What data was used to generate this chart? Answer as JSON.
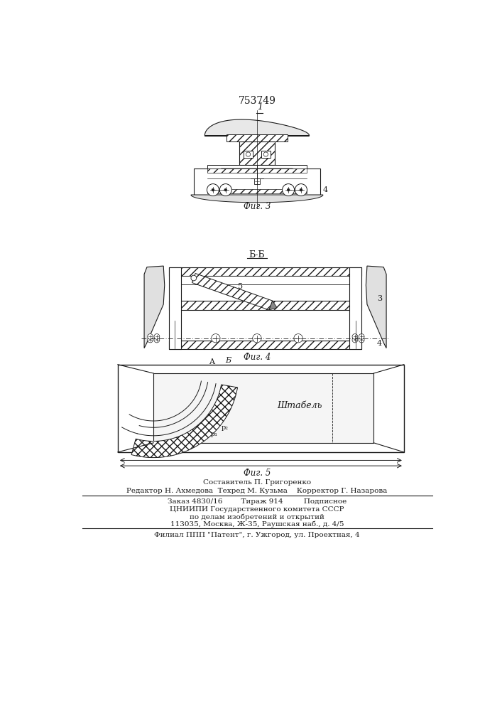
{
  "patent_number": "753749",
  "fig3_label": "1",
  "fig3_caption": "Фиг. 3",
  "fig4_label": "Б-Б",
  "fig4_caption": "Фиг. 4",
  "fig5_caption": "Фиг. 5",
  "fig4_label3": "3",
  "fig4_label4": "4",
  "fig4_label5": "5",
  "fig5_labelA": "A",
  "fig5_labelB": "Б",
  "fig5_text": "Штабель",
  "footer_line1": "Составитель П. Григоренко",
  "footer_line2": "Редактор Н. Ахмедова  Техред М. Кузьма    Корректор Г. Назарова",
  "footer_line3": "Заказ 4830/16        Тираж 914         Подписное",
  "footer_line4": "ЦНИИПИ Государственного комитета СССР",
  "footer_line5": "по делам изобретений и открытий",
  "footer_line6": "113035, Москва, Ж-35, Раушская наб., д. 4/5",
  "footer_line7": "Филиал ППП \"Патент\", г. Ужгород, ул. Проектная, 4",
  "bg_color": "#ffffff",
  "line_color": "#1a1a1a"
}
